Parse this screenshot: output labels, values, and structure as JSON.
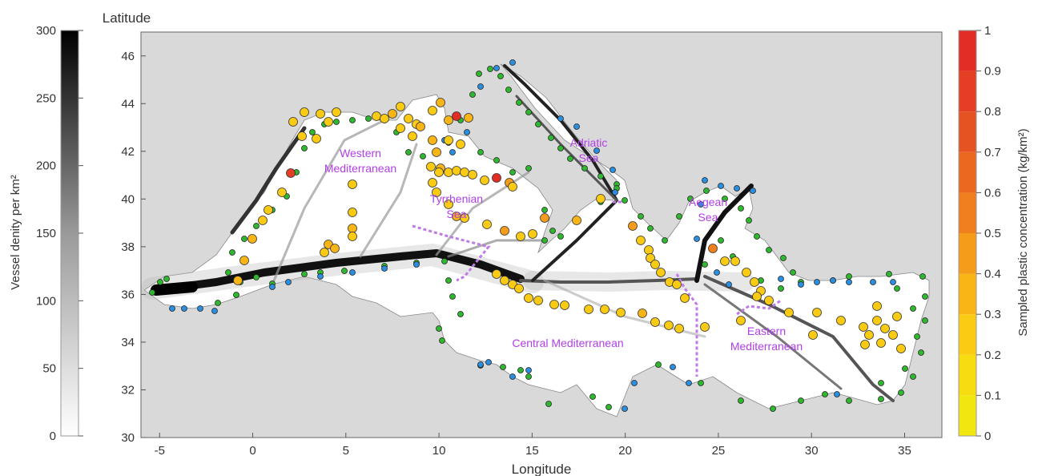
{
  "map": {
    "y_title": "Latitude",
    "x_title": "Longitude",
    "x_ticks": [
      "-5",
      "0",
      "5",
      "10",
      "15",
      "20",
      "25",
      "30",
      "35"
    ],
    "y_ticks": [
      "30",
      "32",
      "34",
      "36",
      "38",
      "40",
      "42",
      "44",
      "46"
    ],
    "regions": [
      {
        "line1": "Western",
        "line2": "Mediterranean"
      },
      {
        "line1": "Tyrrhenian",
        "line2": "Sea"
      },
      {
        "line1": "Adriatic",
        "line2": "Sea"
      },
      {
        "line1": "Aegean",
        "line2": "Sea"
      },
      {
        "line1": "Central Mediterranean",
        "line2": ""
      },
      {
        "line1": "Eastern",
        "line2": "Mediterranean"
      }
    ]
  },
  "left_colorbar": {
    "label": "Vessel denity per km²",
    "ticks": [
      "0",
      "50",
      "100",
      "150",
      "200",
      "250",
      "300"
    ]
  },
  "right_colorbar": {
    "label": "Sampled plastic concentration (kg/km²)",
    "ticks": [
      "0",
      "0.1",
      "0.2",
      "0.3",
      "0.4",
      "0.5",
      "0.6",
      "0.7",
      "0.8",
      "0.9",
      "1"
    ]
  },
  "colors": {
    "land": "#d9d9d9",
    "sea": "#ffffff",
    "vessel_route": "#111111",
    "region_label": "#b13ee8",
    "coastal_green": "#2db82d",
    "coastal_blue": "#2a8fe0",
    "plastic_scale": [
      "#f2e611",
      "#f7dc12",
      "#fbcb13",
      "#f9b516",
      "#f59c1a",
      "#f0801d",
      "#ea6820",
      "#e65322",
      "#e43f24",
      "#e22d26"
    ]
  }
}
